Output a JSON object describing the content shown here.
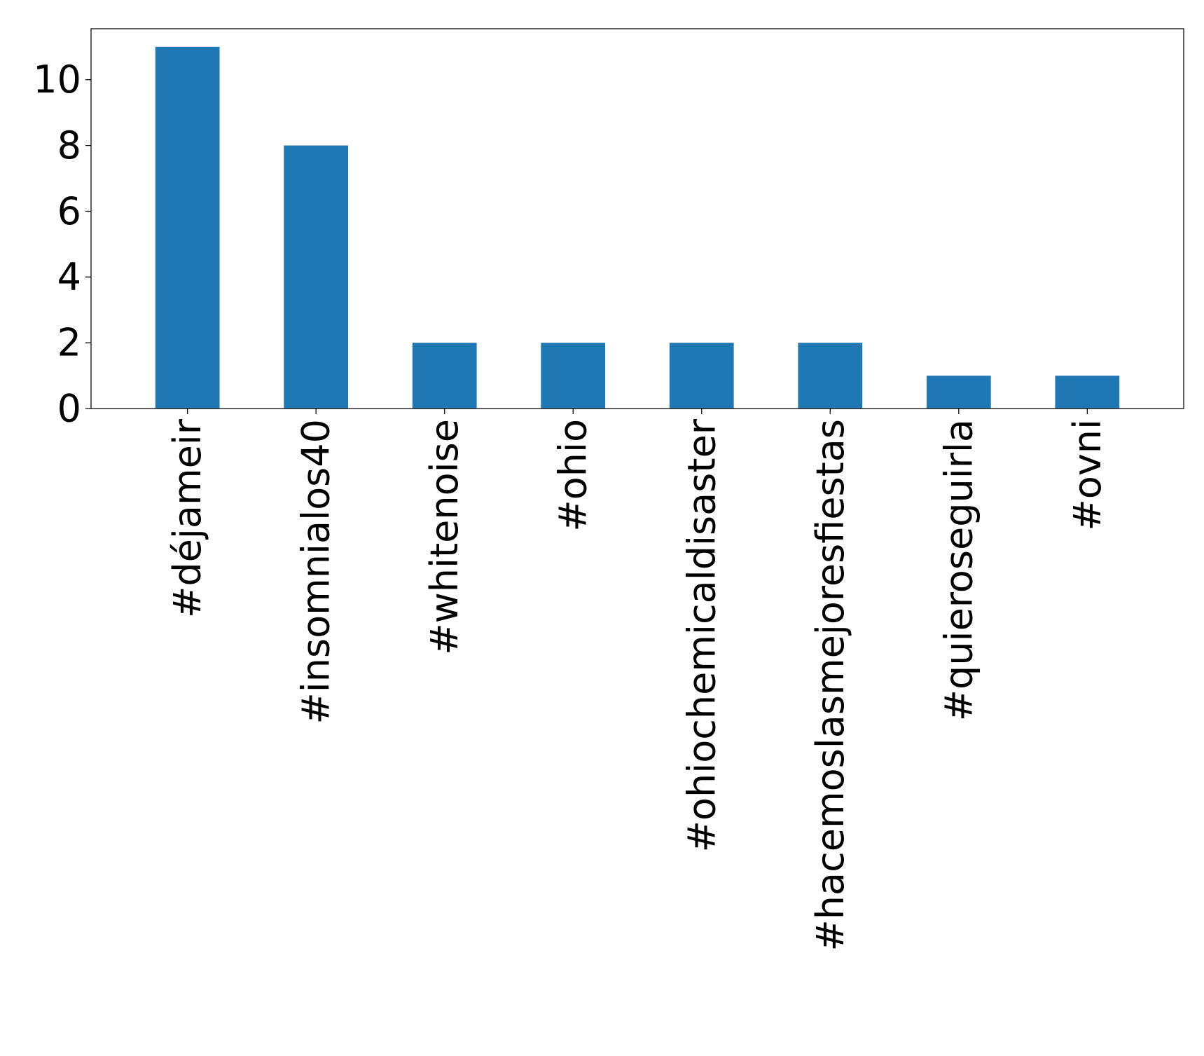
{
  "chart_data": {
    "type": "bar",
    "title": "",
    "xlabel": "",
    "ylabel": "",
    "categories": [
      "#déjameir",
      "#insomnialos40",
      "#whitenoise",
      "#ohio",
      "#ohiochemicaldisaster",
      "#hacemoslasmejoresfiestas",
      "#quieroseguirla",
      "#ovni"
    ],
    "values": [
      11,
      8,
      2,
      2,
      2,
      2,
      1,
      1
    ],
    "ylim": [
      0,
      11.55
    ],
    "yticks": [
      0,
      2,
      4,
      6,
      8,
      10
    ],
    "grid": false,
    "bar_color": "#1f77b4"
  }
}
